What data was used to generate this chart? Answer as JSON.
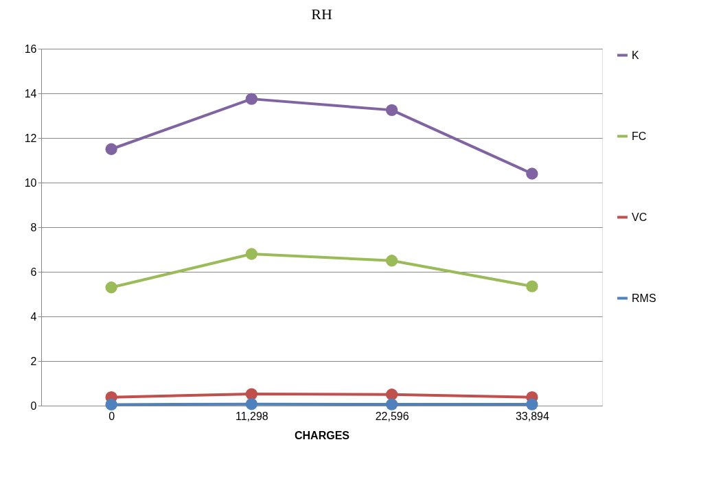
{
  "chart_data": {
    "type": "line",
    "title": "RH",
    "xlabel": "CHARGES",
    "categories": [
      "0",
      "11,298",
      "22,596",
      "33,894"
    ],
    "series": [
      {
        "name": "K",
        "color": "#8064a2",
        "values": [
          11.5,
          13.75,
          13.25,
          10.4
        ]
      },
      {
        "name": "FC",
        "color": "#9bbb59",
        "values": [
          5.3,
          6.8,
          6.5,
          5.35
        ]
      },
      {
        "name": "VC",
        "color": "#c0504d",
        "values": [
          0.38,
          0.52,
          0.5,
          0.38
        ]
      },
      {
        "name": "RMS",
        "color": "#4f81bd",
        "values": [
          0.05,
          0.07,
          0.06,
          0.06
        ]
      }
    ],
    "ylim": [
      0,
      16
    ],
    "yticks": [
      0,
      2,
      4,
      6,
      8,
      10,
      12,
      14,
      16
    ],
    "grid": "y",
    "legend": "right",
    "marker": "circle",
    "line_style": "solid"
  }
}
